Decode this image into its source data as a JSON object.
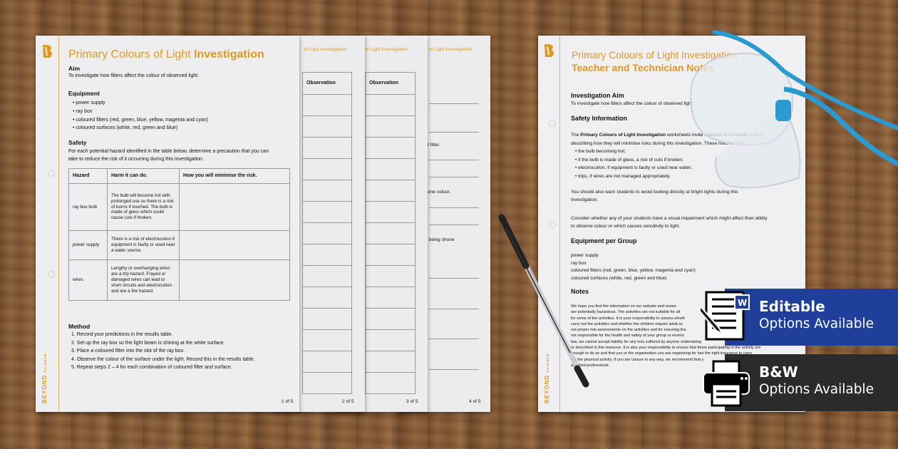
{
  "worksheet": {
    "title_regular": "Primary Colours of Light ",
    "title_bold": "Investigation",
    "aim_heading": "Aim",
    "aim_text": "To investigate how filters affect the colour of observed light.",
    "equipment_heading": "Equipment",
    "equipment": [
      "power supply",
      "ray box",
      "coloured filters (red, green, blue, yellow, magenta and cyan)",
      "coloured surfaces (white, red, green and blue)"
    ],
    "safety_heading": "Safety",
    "safety_text": [
      "For each potential hazard identified in the table below, determine a precaution that you can",
      "take to reduce the risk of it occurring during this investigation."
    ],
    "table_headers": [
      "Hazard",
      "Harm it can do.",
      "How you will minimise the risk."
    ],
    "table_rows": [
      {
        "hazard": "ray box bulb",
        "harm": "The bulb will become hot with prolonged use so there is a risk of burns if touched. The bulb is made of glass which could cause cuts if broken.",
        "minimise": ""
      },
      {
        "hazard": "power supply",
        "harm": "There is a risk of electrocution if equipment is faulty or used near a water source.",
        "minimise": ""
      },
      {
        "hazard": "wires",
        "harm": "Lengthy or overhanging wires are a trip hazard. Frayed or damaged wires can lead to short circuits and electrocution and are a fire hazard.",
        "minimise": ""
      }
    ],
    "method_heading": "Method",
    "method": [
      "1.  Record your predictions in the results table.",
      "2.  Set up the ray box so the light beam is shining at the white surface.",
      "3.  Place a coloured filter into the slot of the ray box.",
      "4.  Observe the colour of the surface under the light. Record this in the results table.",
      "5.  Repeat steps 2 – 4 for each combination of coloured filter and surface."
    ],
    "brand": "BEYOND",
    "brand_sub": "SCIENCE",
    "page_number": "1 of 5"
  },
  "stacked_pages": [
    {
      "header": "of Light Investigation",
      "column": "Observation",
      "page_number": "2 of 5"
    },
    {
      "header": "of Light Investigation",
      "column": "Observation",
      "page_number": "3 of 5"
    },
    {
      "header": "of Light Investigation",
      "snippets": [
        "d filter.",
        "ame colour.",
        "t being shone"
      ],
      "page_number": "4 of 5"
    }
  ],
  "teacher_notes": {
    "title": "Primary Colours of Light Investigation",
    "subtitle": "Teacher and Technician Notes",
    "aim_heading": "Investigation Aim",
    "aim_text": "To investigate how filters affect the colour of observed light.",
    "safety_heading": "Safety Information",
    "safety_intro_bold": "Primary Colours of Light Investigation",
    "safety_intro_pre": "The ",
    "safety_intro_post": " worksheets invite students to complete a table",
    "safety_intro_line2": "describing how they will minimise risks during this investigation. These risks include:",
    "risks": [
      "the bulb becoming hot;",
      "if the bulb is made of glass, a risk of cuts if broken;",
      "electrocution, if equipment is faulty or used near water;",
      "trips, if wires are not managed appropriately."
    ],
    "warn": [
      "You should also warn students to avoid looking directly at bright lights during this",
      "investigation."
    ],
    "consider": [
      "Consider whether any of your students have a visual impairment which might affect their ability",
      "to observe colour or which causes sensitivity to light."
    ],
    "equipment_heading": "Equipment per Group",
    "equipment": [
      "power supply",
      "ray box",
      "coloured filters (red, green, blue, yellow, magenta and cyan)",
      "coloured surfaces (white, red, green and blue)"
    ],
    "notes_heading": "Notes",
    "notes": [
      "We hope you find the information on our website and resour",
      "are potentially hazardous. The activities are not suitable for all",
      "for some of the activities. It is your responsibility to assess wheth",
      "carry out the activities and whether the children require adult su",
      "out proper risk assessments on the activities and for ensuring tha",
      "not responsible for the health and safety of your group or enviror",
      "law, we cannot accept liability for any loss suffered by anyone undertaking",
      "or described in this resource. It is also your responsibility to ensure that those participating in the activity are",
      "enough to do so and that you or the organisation you are organising for has the right insurance to carry",
      "out the physical activity. If you are unsure in any way, we recommend that y",
      "qualified professional."
    ],
    "brand": "BEYOND",
    "brand_sub": "SCIENCE"
  },
  "banners": {
    "editable_line1": "Editable",
    "editable_line2": "Options Available",
    "editable_icon": "word-document-edit-icon",
    "bw_line1": "B&W",
    "bw_line2": "Options Available",
    "bw_icon": "printer-icon",
    "editable_color": "#1f3f9a",
    "bw_color": "#2b2b2b"
  },
  "colors": {
    "accent": "#dd9a1e",
    "glasses": "#2a9ad0"
  }
}
